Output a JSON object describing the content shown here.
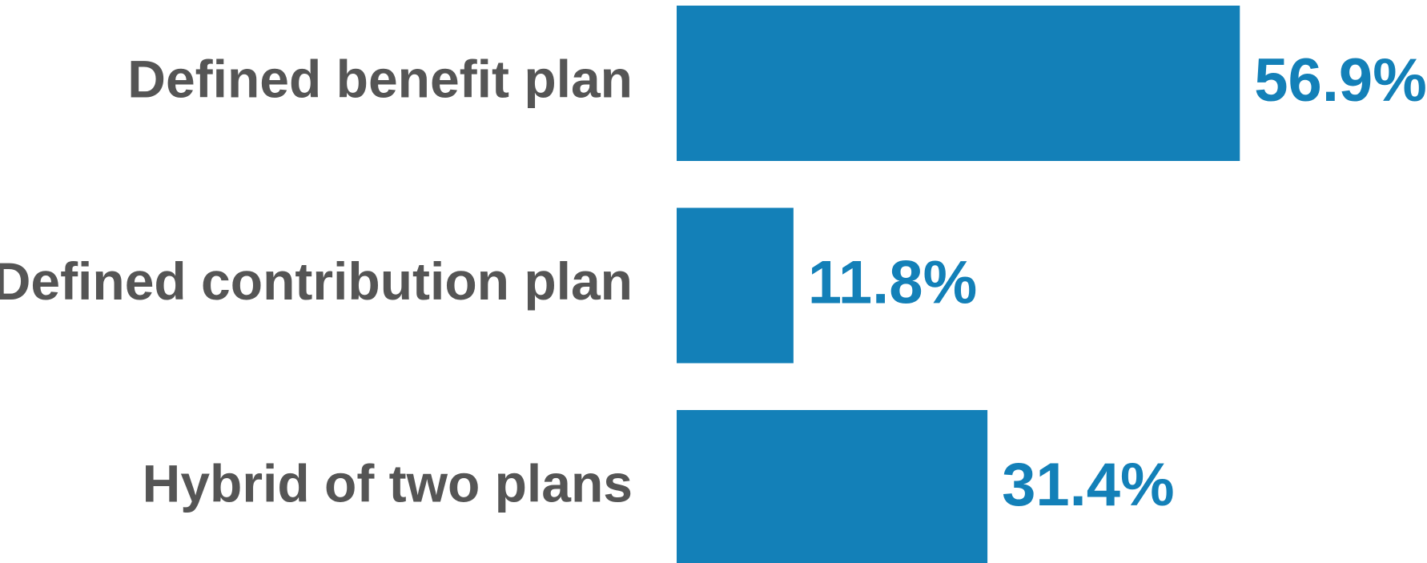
{
  "chart_data": {
    "type": "hbar",
    "categories": [
      "Defined benefit plan",
      "Defined contribution plan",
      "Hybrid of two plans"
    ],
    "values": [
      56.9,
      11.8,
      31.4
    ],
    "value_labels": [
      "56.9%",
      "11.8%",
      "31.4%"
    ],
    "color": "#1380b8"
  }
}
